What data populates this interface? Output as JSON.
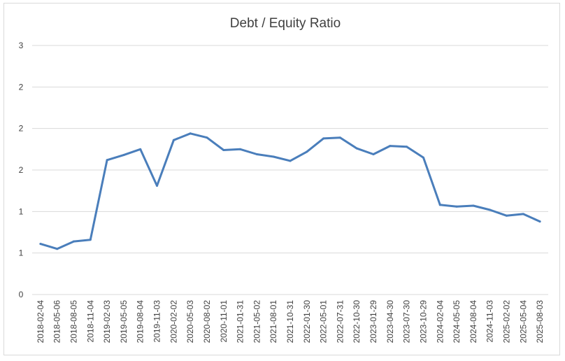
{
  "chart_data": {
    "type": "line",
    "title": "Debt / Equity Ratio",
    "xlabel": "",
    "ylabel": "",
    "ylim": [
      0,
      3
    ],
    "yticks": [
      0,
      0.5,
      1,
      1.5,
      2,
      2.5,
      3
    ],
    "ytick_labels": [
      "0",
      "1",
      "1",
      "2",
      "2",
      "2",
      "3"
    ],
    "grid": true,
    "legend": "none",
    "color": "#4a7ebb",
    "x": [
      "2018-02-04",
      "2018-05-06",
      "2018-08-05",
      "2018-11-04",
      "2019-02-03",
      "2019-05-05",
      "2019-08-04",
      "2019-11-03",
      "2020-02-02",
      "2020-05-03",
      "2020-08-02",
      "2020-11-01",
      "2021-01-31",
      "2021-05-02",
      "2021-08-01",
      "2021-10-31",
      "2022-01-30",
      "2022-05-01",
      "2022-07-31",
      "2022-10-30",
      "2023-01-29",
      "2023-04-30",
      "2023-07-30",
      "2023-10-29",
      "2024-02-04",
      "2024-05-05",
      "2024-08-04",
      "2024-11-03",
      "2025-02-02",
      "2025-05-04",
      "2025-08-03"
    ],
    "series": [
      {
        "values": [
          0.61,
          0.55,
          0.64,
          0.66,
          1.62,
          1.68,
          1.75,
          1.31,
          1.86,
          1.94,
          1.89,
          1.74,
          1.75,
          1.69,
          1.66,
          1.61,
          1.72,
          1.88,
          1.89,
          1.76,
          1.69,
          1.79,
          1.78,
          1.65,
          1.08,
          1.06,
          1.07,
          1.02,
          0.95,
          0.97,
          0.88
        ]
      }
    ]
  }
}
